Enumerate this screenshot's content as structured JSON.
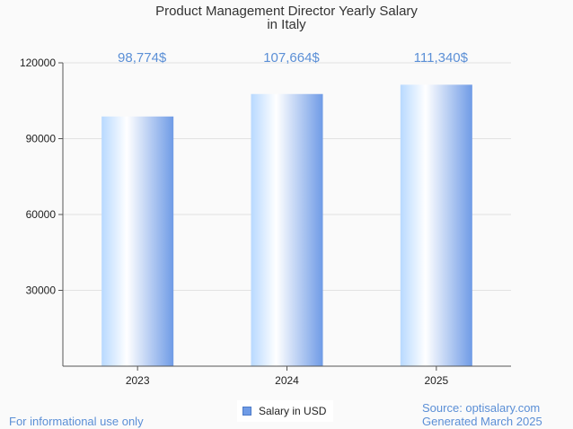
{
  "chart_data": {
    "type": "bar",
    "title_line1": "Product Management Director Yearly Salary",
    "title_line2": "in Italy",
    "categories": [
      "2023",
      "2024",
      "2025"
    ],
    "series": [
      {
        "name": "Salary in USD",
        "values": [
          98774,
          107664,
          111340
        ]
      }
    ],
    "data_labels": [
      "98,774$",
      "107,664$",
      "111,340$"
    ],
    "yticks": [
      30000,
      60000,
      90000,
      120000
    ],
    "ylim": [
      0,
      120000
    ],
    "grid": true,
    "legend_position": "bottom-center",
    "colors": {
      "bar_light": "#ffffff",
      "bar_mid": "#b8d9ff",
      "bar_dark": "#6f9be6",
      "label": "#5b8fd6"
    }
  },
  "footer": {
    "note": "For informational use only",
    "source": "Source: optisalary.com",
    "generated": "Generated March 2025"
  }
}
